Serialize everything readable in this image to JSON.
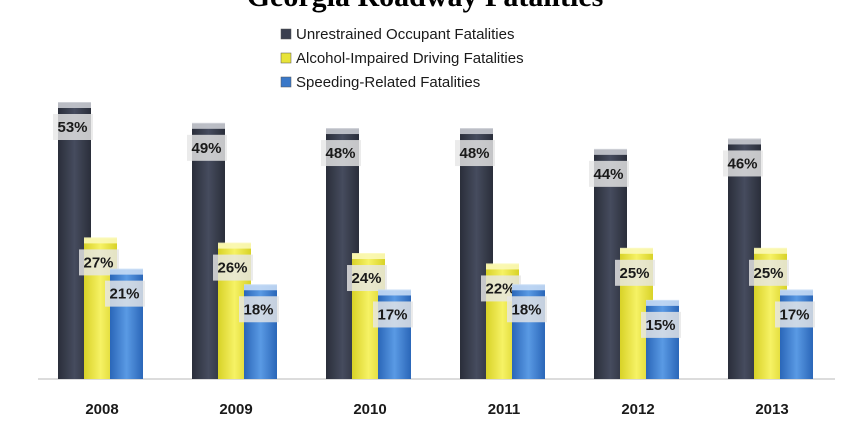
{
  "chart_data": {
    "type": "bar",
    "title": "Georgia Roadway Fatalities",
    "categories": [
      "2008",
      "2009",
      "2010",
      "2011",
      "2012",
      "2013"
    ],
    "series": [
      {
        "name": "Unrestrained Occupant Fatalities",
        "values": [
          53,
          49,
          48,
          48,
          44,
          46
        ],
        "color": "#3a3f4f"
      },
      {
        "name": "Alcohol-Impaired Driving Fatalities",
        "values": [
          27,
          26,
          24,
          22,
          25,
          25
        ],
        "color": "#e8e43a"
      },
      {
        "name": "Speeding-Related Fatalities",
        "values": [
          21,
          18,
          17,
          18,
          15,
          17
        ],
        "color": "#3a78c8"
      }
    ],
    "value_suffix": "%",
    "ylim": [
      0,
      60
    ],
    "grid": false,
    "legend_position": "top-center"
  }
}
